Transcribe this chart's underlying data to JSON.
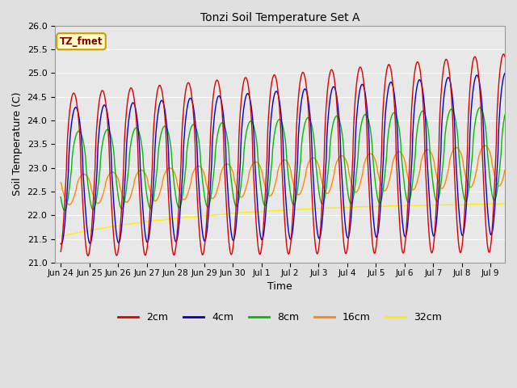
{
  "title": "Tonzi Soil Temperature Set A",
  "xlabel": "Time",
  "ylabel": "Soil Temperature (C)",
  "ylim": [
    21.0,
    26.0
  ],
  "yticks": [
    21.0,
    21.5,
    22.0,
    22.5,
    23.0,
    23.5,
    24.0,
    24.5,
    25.0,
    25.5,
    26.0
  ],
  "colors": {
    "2cm": "#dd0000",
    "4cm": "#0000cc",
    "8cm": "#00bb00",
    "16cm": "#ff8800",
    "32cm": "#ffee00"
  },
  "legend_label": "TZ_fmet",
  "legend_box_color": "#ffffcc",
  "legend_box_edge": "#cc9900",
  "background_color": "#e0e0e0",
  "plot_bg_color": "#e8e8e8",
  "n_points": 1500,
  "end_day": 15.5,
  "tick_labels": [
    "Jun 24",
    "Jun 25",
    "Jun 26",
    "Jun 27",
    "Jun 28",
    "Jun 29",
    "Jun 30",
    "Jul 1",
    "Jul 2",
    "Jul 3",
    "Jul 4",
    "Jul 5",
    "Jul 6",
    "Jul 7",
    "Jul 8",
    "Jul 9"
  ],
  "tick_positions": [
    0,
    1,
    2,
    3,
    4,
    5,
    6,
    7,
    8,
    9,
    10,
    11,
    12,
    13,
    14,
    15
  ]
}
